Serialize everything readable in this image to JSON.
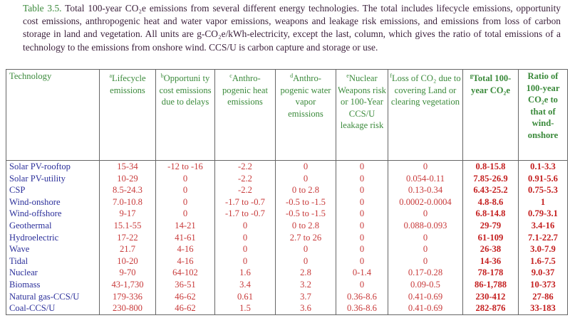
{
  "caption": {
    "label": "Table 3.5.",
    "text": "Total 100-year CO₂e emissions from several different energy technologies. The total includes lifecycle emissions, opportunity cost emissions, anthropogenic heat and water vapor emissions, weapons and leakage risk emissions, and emissions from loss of carbon storage in land and vegetation. All units are g-CO₂e/kWh-electricity, except the last, column, which gives the ratio of total emissions of a technology to the emissions from onshore wind. CCS/U is carbon capture and storage or use."
  },
  "columns": [
    {
      "sup": "",
      "label": "Technology"
    },
    {
      "sup": "a",
      "label": "Lifecycle emissions"
    },
    {
      "sup": "b",
      "label": "Opportuni ty cost emissions due to delays"
    },
    {
      "sup": "c",
      "label": "Anthro- pogenic heat emissions"
    },
    {
      "sup": "d",
      "label": "Anthro- pogenic water vapor emissions"
    },
    {
      "sup": "e",
      "label": "Nuclear Weapons risk or 100-Year CCS/U leakage risk"
    },
    {
      "sup": "f",
      "label": "Loss of CO₂ due to covering Land or clearing vegetation"
    },
    {
      "sup": "g",
      "label": "Total 100-year CO₂e"
    },
    {
      "sup": "",
      "label": "Ratio of 100-year CO₂e to that of wind- onshore"
    }
  ],
  "rows": [
    [
      "Solar PV-rooftop",
      "15-34",
      "-12 to -16",
      "-2.2",
      "0",
      "0",
      "0",
      "0.8-15.8",
      "0.1-3.3"
    ],
    [
      "Solar PV-utility",
      "10-29",
      "0",
      "-2.2",
      "0",
      "0",
      "0.054-0.11",
      "7.85-26.9",
      "0.91-5.6"
    ],
    [
      "CSP",
      "8.5-24.3",
      "0",
      "-2.2",
      "0 to 2.8",
      "0",
      "0.13-0.34",
      "6.43-25.2",
      "0.75-5.3"
    ],
    [
      "Wind-onshore",
      "7.0-10.8",
      "0",
      "-1.7 to -0.7",
      "-0.5 to -1.5",
      "0",
      "0.0002-0.0004",
      "4.8-8.6",
      "1"
    ],
    [
      "Wind-offshore",
      "9-17",
      "0",
      "-1.7 to -0.7",
      "-0.5 to -1.5",
      "0",
      "0",
      "6.8-14.8",
      "0.79-3.1"
    ],
    [
      "Geothermal",
      "15.1-55",
      "14-21",
      "0",
      "0 to 2.8",
      "0",
      "0.088-0.093",
      "29-79",
      "3.4-16"
    ],
    [
      "Hydroelectric",
      "17-22",
      "41-61",
      "0",
      "2.7 to 26",
      "0",
      "0",
      "61-109",
      "7.1-22.7"
    ],
    [
      "Wave",
      "21.7",
      "4-16",
      "0",
      "0",
      "0",
      "0",
      "26-38",
      "3.0-7.9"
    ],
    [
      "Tidal",
      "10-20",
      "4-16",
      "0",
      "0",
      "0",
      "0",
      "14-36",
      "1.6-7.5"
    ],
    [
      "Nuclear",
      "9-70",
      "64-102",
      "1.6",
      "2.8",
      "0-1.4",
      "0.17-0.28",
      "78-178",
      "9.0-37"
    ],
    [
      "Biomass",
      "43-1,730",
      "36-51",
      "3.4",
      "3.2",
      "0",
      "0.09-0.5",
      "86-1,788",
      "10-373"
    ],
    [
      "Natural gas-CCS/U",
      "179-336",
      "46-62",
      "0.61",
      "3.7",
      "0.36-8.6",
      "0.41-0.69",
      "230-412",
      "27-86"
    ],
    [
      "Coal-CCS/U",
      "230-800",
      "46-62",
      "1.5",
      "3.6",
      "0.36-8.6",
      "0.41-0.69",
      "282-876",
      "33-183"
    ]
  ],
  "colors": {
    "header": "#3b8a3b",
    "technology": "#2b2f9a",
    "values": "#c83a3a"
  }
}
